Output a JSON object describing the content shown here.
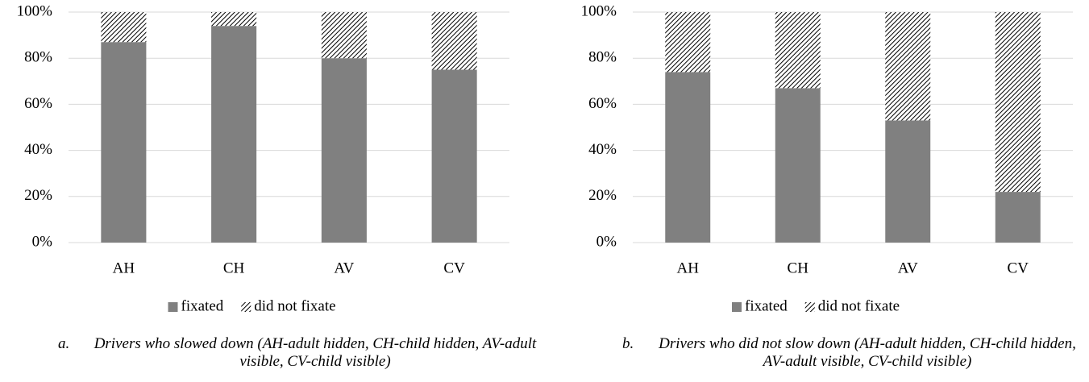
{
  "chart_data": [
    {
      "type": "bar",
      "stacked": true,
      "categories": [
        "AH",
        "CH",
        "AV",
        "CV"
      ],
      "series": [
        {
          "name": "fixated",
          "color": "#808080",
          "values": [
            87,
            94,
            80,
            75
          ]
        },
        {
          "name": "did not fixate",
          "color": "#000000",
          "pattern": "diagonal-hatch",
          "values": [
            13,
            6,
            20,
            25
          ]
        }
      ],
      "ylim": [
        0,
        100
      ],
      "yticks": [
        {
          "value": 0,
          "label": "0%"
        },
        {
          "value": 20,
          "label": "20%"
        },
        {
          "value": 40,
          "label": "40%"
        },
        {
          "value": 60,
          "label": "60%"
        },
        {
          "value": 80,
          "label": "80%"
        },
        {
          "value": 100,
          "label": "100%"
        }
      ],
      "grid": true,
      "legend": "bottom",
      "caption": {
        "marker": "a.",
        "text": "Drivers who slowed down (AH-adult hidden, CH-child hidden, AV-adult visible, CV-child visible)"
      }
    },
    {
      "type": "bar",
      "stacked": true,
      "categories": [
        "AH",
        "CH",
        "AV",
        "CV"
      ],
      "series": [
        {
          "name": "fixated",
          "color": "#808080",
          "values": [
            74,
            67,
            53,
            22
          ]
        },
        {
          "name": "did not fixate",
          "color": "#000000",
          "pattern": "diagonal-hatch",
          "values": [
            26,
            33,
            47,
            78
          ]
        }
      ],
      "ylim": [
        0,
        100
      ],
      "yticks": [
        {
          "value": 0,
          "label": "0%"
        },
        {
          "value": 20,
          "label": "20%"
        },
        {
          "value": 40,
          "label": "40%"
        },
        {
          "value": 60,
          "label": "60%"
        },
        {
          "value": 80,
          "label": "80%"
        },
        {
          "value": 100,
          "label": "100%"
        }
      ],
      "grid": true,
      "legend": "bottom",
      "caption": {
        "marker": "b.",
        "text": "Drivers who did not slow down (AH-adult hidden, CH-child hidden, AV-adult visible, CV-child visible)"
      }
    }
  ]
}
